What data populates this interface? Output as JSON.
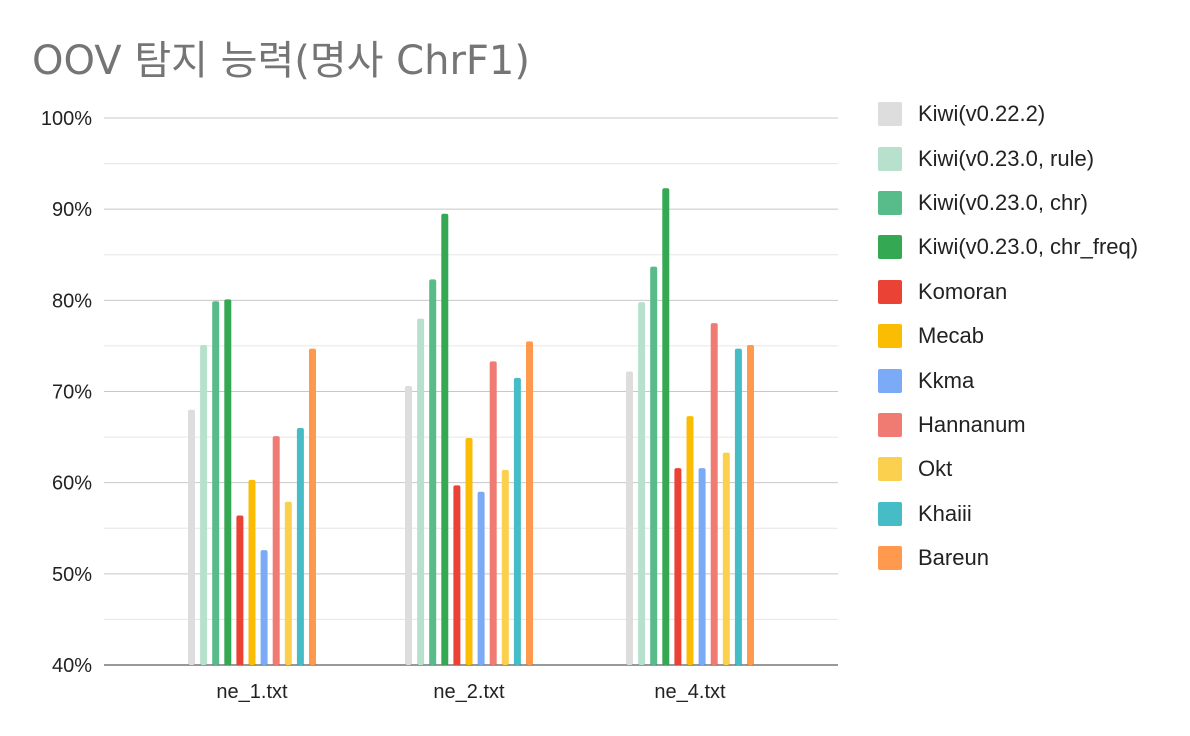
{
  "chart_data": {
    "type": "bar",
    "title": "OOV 탐지 능력(명사 ChrF1)",
    "xlabel": "",
    "ylabel": "",
    "ylim": [
      40,
      100
    ],
    "yticks": [
      40,
      50,
      60,
      70,
      80,
      90,
      100
    ],
    "ytick_labels": [
      "40%",
      "50%",
      "60%",
      "70%",
      "80%",
      "90%",
      "100%"
    ],
    "grid": true,
    "minor_grid": true,
    "legend_position": "right",
    "categories": [
      "ne_1.txt",
      "ne_2.txt",
      "ne_4.txt"
    ],
    "series": [
      {
        "name": "Kiwi(v0.22.2)",
        "color": "#dddddd",
        "values": [
          68.0,
          70.6,
          72.2
        ]
      },
      {
        "name": "Kiwi(v0.23.0, rule)",
        "color": "#b7e1cd",
        "values": [
          75.1,
          78.0,
          79.8
        ]
      },
      {
        "name": "Kiwi(v0.23.0, chr)",
        "color": "#57bb8a",
        "values": [
          79.9,
          82.3,
          83.7
        ]
      },
      {
        "name": "Kiwi(v0.23.0, chr_freq)",
        "color": "#34a853",
        "values": [
          80.1,
          89.5,
          92.3
        ]
      },
      {
        "name": "Komoran",
        "color": "#ea4335",
        "values": [
          56.4,
          59.7,
          61.6
        ]
      },
      {
        "name": "Mecab",
        "color": "#fbbc04",
        "values": [
          60.3,
          64.9,
          67.3
        ]
      },
      {
        "name": "Kkma",
        "color": "#7baaf7",
        "values": [
          52.6,
          59.0,
          61.6
        ]
      },
      {
        "name": "Hannanum",
        "color": "#f07b72",
        "values": [
          65.1,
          73.3,
          77.5
        ]
      },
      {
        "name": "Okt",
        "color": "#fcd04f",
        "values": [
          57.9,
          61.4,
          63.3
        ]
      },
      {
        "name": "Khaiii",
        "color": "#46bdc6",
        "values": [
          66.0,
          71.5,
          74.7
        ]
      },
      {
        "name": "Bareun",
        "color": "#ff994d",
        "values": [
          74.7,
          75.5,
          75.1
        ]
      }
    ]
  }
}
